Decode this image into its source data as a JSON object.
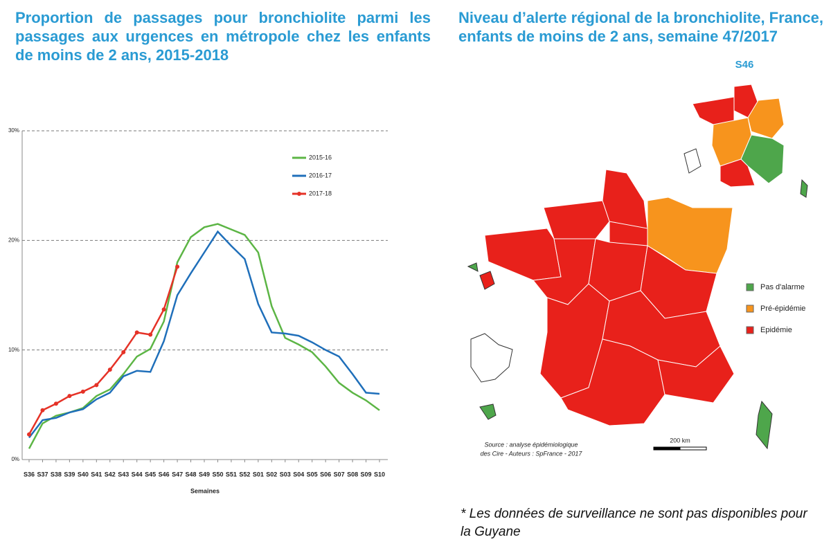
{
  "chart_data": {
    "type": "line",
    "title": "Proportion de passages pour bronchiolite parmi les passages aux urgences en métropole chez les enfants de moins de 2 ans, 2015-2018",
    "x_label": "Semaines",
    "categories": [
      "S36",
      "S37",
      "S38",
      "S39",
      "S40",
      "S41",
      "S42",
      "S43",
      "S44",
      "S45",
      "S46",
      "S47",
      "S48",
      "S49",
      "S50",
      "S51",
      "S52",
      "S01",
      "S02",
      "S03",
      "S04",
      "S05",
      "S06",
      "S07",
      "S08",
      "S09",
      "S10"
    ],
    "series": [
      {
        "name": "2015-16",
        "color": "#5cb545",
        "values": [
          1.0,
          3.3,
          4.0,
          4.3,
          4.7,
          5.8,
          6.4,
          7.8,
          9.4,
          10.1,
          12.6,
          18.0,
          20.3,
          21.2,
          21.5,
          21.0,
          20.5,
          18.9,
          14.0,
          11.1,
          10.5,
          9.8,
          8.5,
          7.0,
          6.1,
          5.4,
          4.5
        ]
      },
      {
        "name": "2016-17",
        "color": "#1f6fba",
        "values": [
          2.0,
          3.6,
          3.8,
          4.3,
          4.6,
          5.5,
          6.1,
          7.6,
          8.1,
          8.0,
          10.8,
          15.0,
          17.0,
          18.9,
          20.8,
          19.5,
          18.3,
          14.2,
          11.6,
          11.5,
          11.3,
          10.7,
          10.0,
          9.4,
          7.8,
          6.1,
          6.0
        ]
      },
      {
        "name": "2017-18",
        "color": "#e53227",
        "markers": true,
        "values": [
          2.3,
          4.5,
          5.1,
          5.8,
          6.2,
          6.8,
          8.2,
          9.8,
          11.6,
          11.4,
          13.7,
          17.6,
          null,
          null,
          null,
          null,
          null,
          null,
          null,
          null,
          null,
          null,
          null,
          null,
          null,
          null,
          null
        ]
      }
    ],
    "ylim": [
      0,
      30
    ],
    "yticks": [
      {
        "value": 0,
        "label": "0%"
      },
      {
        "value": 10,
        "label": "10%"
      },
      {
        "value": 20,
        "label": "20%"
      },
      {
        "value": 30,
        "label": "30%"
      }
    ],
    "grid": true,
    "legend": "upper right"
  },
  "map": {
    "title": "Niveau d’alerte régional de la bronchiolite, France, enfants de moins de 2 ans, semaine  47/2017",
    "inset_label": "S46",
    "legend": [
      {
        "name": "Pas d'alarme",
        "color": "#4ea64b"
      },
      {
        "name": "Pré-épidémie",
        "color": "#f7941d"
      },
      {
        "name": "Epidémie",
        "color": "#e8211b"
      }
    ],
    "source": [
      "Source : analyse épidémiologique",
      "des Cire - Auteurs : SpFrance -  2017"
    ],
    "scale": "200 km",
    "footnote": "* Les données de surveillance ne sont pas disponibles pour la Guyane"
  }
}
